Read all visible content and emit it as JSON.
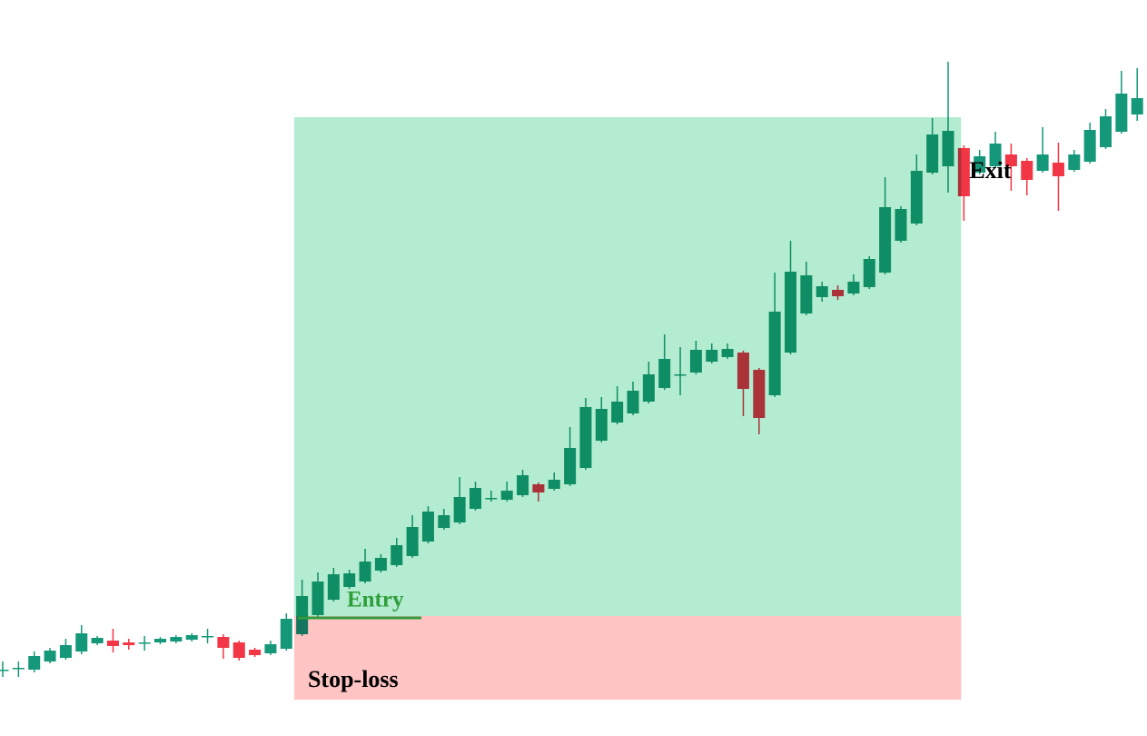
{
  "chart_data": {
    "type": "candlestick",
    "up_color": "#15987a",
    "down_color": "#f23645",
    "ylim": [
      0,
      810
    ],
    "open": [
      73,
      75,
      73,
      82,
      86,
      93,
      102,
      105,
      103,
      103,
      103,
      104,
      106,
      110,
      109,
      103,
      95,
      91,
      96,
      112,
      133,
      150,
      164,
      170,
      182,
      188,
      198,
      214,
      229,
      235,
      250,
      262,
      260,
      265,
      277,
      272,
      277,
      295,
      325,
      345,
      355,
      368,
      383,
      398,
      400,
      412,
      417,
      422,
      403,
      375,
      422,
      465,
      483,
      491,
      487,
      494,
      510,
      545,
      564,
      620,
      627,
      647,
      620,
      627,
      640,
      633,
      622,
      631,
      623,
      632,
      648,
      665,
      684
    ],
    "high": [
      82,
      82,
      93,
      97,
      107,
      122,
      110,
      118,
      107,
      110,
      109,
      111,
      113,
      118,
      112,
      105,
      97,
      105,
      135,
      172,
      180,
      185,
      183,
      206,
      200,
      218,
      243,
      253,
      250,
      285,
      280,
      270,
      280,
      293,
      279,
      290,
      340,
      372,
      373,
      385,
      390,
      412,
      442,
      428,
      435,
      432,
      432,
      424,
      405,
      510,
      545,
      522,
      500,
      496,
      508,
      528,
      615,
      583,
      640,
      680,
      742,
      650,
      645,
      665,
      652,
      636,
      670,
      653,
      645,
      675,
      690,
      732,
      735
    ],
    "low": [
      65,
      65,
      70,
      80,
      84,
      90,
      100,
      92,
      95,
      94,
      101,
      102,
      104,
      102,
      85,
      83,
      87,
      89,
      94,
      110,
      131,
      148,
      162,
      168,
      180,
      186,
      196,
      212,
      227,
      233,
      248,
      258,
      258,
      263,
      258,
      270,
      275,
      293,
      323,
      343,
      353,
      366,
      381,
      375,
      398,
      410,
      415,
      352,
      332,
      373,
      420,
      463,
      478,
      480,
      485,
      492,
      508,
      543,
      562,
      618,
      598,
      567,
      618,
      625,
      600,
      595,
      620,
      578,
      621,
      630,
      646,
      663,
      677
    ],
    "close": [
      73,
      75,
      88,
      94,
      100,
      113,
      108,
      99,
      100,
      103,
      107,
      109,
      111,
      110,
      97,
      86,
      89,
      101,
      129,
      154,
      170,
      178,
      179,
      192,
      196,
      210,
      230,
      247,
      243,
      263,
      273,
      262,
      270,
      287,
      268,
      282,
      317,
      362,
      360,
      368,
      380,
      398,
      415,
      398,
      425,
      425,
      426,
      382,
      350,
      467,
      511,
      507,
      495,
      484,
      500,
      525,
      582,
      580,
      622,
      662,
      666,
      594,
      638,
      652,
      627,
      612,
      640,
      616,
      640,
      667,
      682,
      707,
      702
    ],
    "entry_index": 19,
    "exit_index": 61,
    "entry": {
      "text": "Entry",
      "value": 132,
      "color": "#2e9e3a"
    },
    "take_profit": {
      "value": 681,
      "color": "#b3ecd1"
    },
    "stop_loss": {
      "text": "Stop-loss",
      "value": 40,
      "color": "#ffc4c4"
    },
    "exit": {
      "text": "Exit"
    }
  }
}
